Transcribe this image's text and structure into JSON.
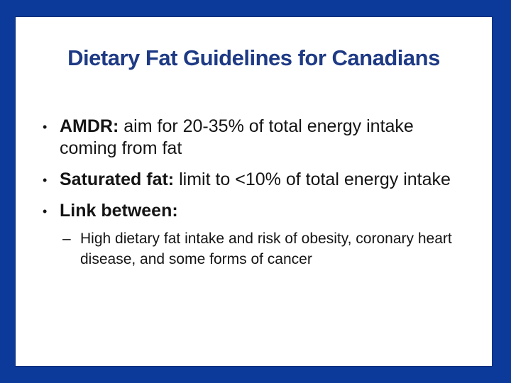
{
  "slide": {
    "title": "Dietary Fat Guidelines for Canadians",
    "bullet_glyph": "•",
    "sub_bullet_glyph": "–",
    "bullets": [
      {
        "lead": "AMDR:",
        "text": " aim for 20-35% of total energy intake coming from fat"
      },
      {
        "lead": "Saturated fat:",
        "text": " limit to <10% of total energy intake"
      },
      {
        "lead": "Link between:",
        "text": ""
      }
    ],
    "sub_bullets": [
      {
        "text": "High dietary fat intake and risk of obesity, coronary heart disease, and some forms of cancer"
      }
    ],
    "colors": {
      "frame_blue": "#0b3a9a",
      "panel_border": "#0a2e7a",
      "title_blue": "#1e3a85",
      "body_text": "#141414",
      "panel_bg": "#ffffff"
    }
  }
}
